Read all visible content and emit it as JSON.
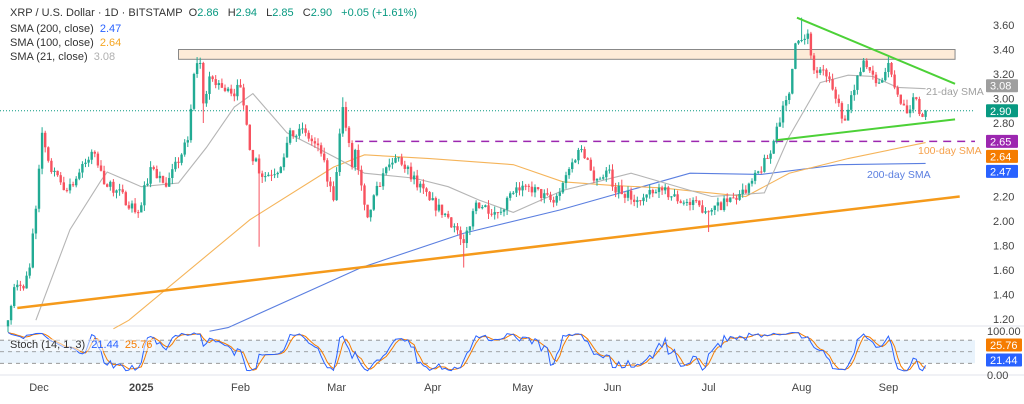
{
  "header": {
    "symbol": "XRP / U.S. Dollar · 1D · BITSTAMP",
    "open_label": "O",
    "open": "2.86",
    "high_label": "H",
    "high": "2.94",
    "low_label": "L",
    "low": "2.85",
    "close_label": "C",
    "close": "2.90",
    "change": "+0.05 (+1.61%)"
  },
  "indicators": [
    {
      "label": "SMA (200, close)",
      "value": "2.47",
      "color": "#2962ff"
    },
    {
      "label": "SMA (100, close)",
      "value": "2.64",
      "color": "#f5a623"
    },
    {
      "label": "SMA (21, close)",
      "value": "3.08",
      "color": "#b0b0b0"
    }
  ],
  "stoch": {
    "label": "Stoch (14, 1, 3)",
    "k": "21.44",
    "d": "25.76",
    "k_color": "#2962ff",
    "d_color": "#f57c00"
  },
  "colors": {
    "up": "#22ab94",
    "down": "#f7525f",
    "sma200": "#5b7fe0",
    "sma100": "#f5b45a",
    "sma21": "#b5b5b5",
    "trend": "#f59a1b",
    "triangle": "#4cd137",
    "level": "#9c27b0",
    "zone_fill": "#fdebd8",
    "zone_border": "#888888"
  },
  "chart_data": {
    "type": "candlestick",
    "title": "XRP / U.S. Dollar · 1D · BITSTAMP",
    "ylim": [
      1.1,
      3.7
    ],
    "y_ticks": [
      "3.60",
      "3.40",
      "3.20",
      "3.00",
      "2.80",
      "2.20",
      "2.00",
      "1.80",
      "1.60",
      "1.40",
      "1.20"
    ],
    "x_ticks": [
      {
        "label": "Dec",
        "day": 10,
        "bold": false
      },
      {
        "label": "2025",
        "day": 43,
        "bold": true
      },
      {
        "label": "Feb",
        "day": 75,
        "bold": false
      },
      {
        "label": "Mar",
        "day": 106,
        "bold": false
      },
      {
        "label": "Apr",
        "day": 137,
        "bold": false
      },
      {
        "label": "May",
        "day": 166,
        "bold": false
      },
      {
        "label": "Jun",
        "day": 195,
        "bold": false
      },
      {
        "label": "Jul",
        "day": 226,
        "bold": false
      },
      {
        "label": "Aug",
        "day": 256,
        "bold": false
      },
      {
        "label": "Sep",
        "day": 284,
        "bold": false
      }
    ],
    "close_keypoints": [
      [
        0,
        1.19
      ],
      [
        2,
        1.46
      ],
      [
        5,
        1.45
      ],
      [
        7,
        1.62
      ],
      [
        9,
        2.1
      ],
      [
        11,
        2.72
      ],
      [
        14,
        2.4
      ],
      [
        19,
        2.25
      ],
      [
        26,
        2.5
      ],
      [
        28,
        2.55
      ],
      [
        31,
        2.3
      ],
      [
        35,
        2.25
      ],
      [
        42,
        2.07
      ],
      [
        46,
        2.44
      ],
      [
        51,
        2.28
      ],
      [
        58,
        2.66
      ],
      [
        60,
        3.2
      ],
      [
        62,
        3.29
      ],
      [
        63,
        2.96
      ],
      [
        65,
        3.18
      ],
      [
        72,
        3.04
      ],
      [
        75,
        3.09
      ],
      [
        78,
        2.58
      ],
      [
        82,
        2.36
      ],
      [
        88,
        2.44
      ],
      [
        91,
        2.74
      ],
      [
        96,
        2.72
      ],
      [
        101,
        2.55
      ],
      [
        105,
        2.17
      ],
      [
        108,
        2.93
      ],
      [
        111,
        2.44
      ],
      [
        112,
        2.58
      ],
      [
        116,
        2.03
      ],
      [
        121,
        2.39
      ],
      [
        126,
        2.52
      ],
      [
        136,
        2.17
      ],
      [
        142,
        2.03
      ],
      [
        147,
        1.82
      ],
      [
        151,
        2.15
      ],
      [
        158,
        2.07
      ],
      [
        163,
        2.23
      ],
      [
        168,
        2.28
      ],
      [
        176,
        2.15
      ],
      [
        179,
        2.31
      ],
      [
        184,
        2.58
      ],
      [
        187,
        2.5
      ],
      [
        189,
        2.33
      ],
      [
        194,
        2.42
      ],
      [
        195,
        2.28
      ],
      [
        203,
        2.17
      ],
      [
        211,
        2.25
      ],
      [
        218,
        2.15
      ],
      [
        227,
        2.09
      ],
      [
        238,
        2.23
      ],
      [
        246,
        2.55
      ],
      [
        248,
        2.77
      ],
      [
        252,
        3.04
      ],
      [
        254,
        3.45
      ],
      [
        258,
        3.53
      ],
      [
        260,
        3.23
      ],
      [
        264,
        3.18
      ],
      [
        270,
        2.82
      ],
      [
        273,
        3.07
      ],
      [
        276,
        3.31
      ],
      [
        281,
        3.13
      ],
      [
        284,
        3.29
      ],
      [
        286,
        3.09
      ],
      [
        290,
        2.88
      ],
      [
        292,
        3.01
      ],
      [
        295,
        2.85
      ],
      [
        296,
        2.9
      ]
    ],
    "wick_overrides": [
      [
        63,
        null,
        2.8
      ],
      [
        81,
        null,
        1.79
      ],
      [
        108,
        3.01,
        null
      ],
      [
        147,
        null,
        1.62
      ],
      [
        226,
        null,
        1.91
      ],
      [
        256,
        3.66,
        null
      ]
    ],
    "series": [
      {
        "name": "SMA 200",
        "points": [
          [
            65,
            1.1
          ],
          [
            71,
            1.13
          ],
          [
            114,
            1.62
          ],
          [
            147,
            1.9
          ],
          [
            178,
            2.09
          ],
          [
            220,
            2.39
          ],
          [
            243,
            2.38
          ],
          [
            268,
            2.46
          ],
          [
            296,
            2.47
          ]
        ]
      },
      {
        "name": "SMA 100",
        "points": [
          [
            34,
            1.12
          ],
          [
            39,
            1.19
          ],
          [
            78,
            2.01
          ],
          [
            105,
            2.44
          ],
          [
            115,
            2.54
          ],
          [
            136,
            2.51
          ],
          [
            163,
            2.46
          ],
          [
            179,
            2.32
          ],
          [
            195,
            2.29
          ],
          [
            211,
            2.27
          ],
          [
            238,
            2.2
          ],
          [
            252,
            2.39
          ],
          [
            271,
            2.51
          ],
          [
            296,
            2.64
          ]
        ]
      },
      {
        "name": "SMA 21",
        "points": [
          [
            9,
            1.19
          ],
          [
            20,
            1.93
          ],
          [
            30,
            2.33
          ],
          [
            32,
            2.4
          ],
          [
            43,
            2.28
          ],
          [
            55,
            2.31
          ],
          [
            64,
            2.6
          ],
          [
            73,
            2.93
          ],
          [
            79,
            3.04
          ],
          [
            90,
            2.72
          ],
          [
            101,
            2.58
          ],
          [
            107,
            2.5
          ],
          [
            115,
            2.39
          ],
          [
            131,
            2.35
          ],
          [
            142,
            2.28
          ],
          [
            152,
            2.17
          ],
          [
            163,
            2.07
          ],
          [
            179,
            2.25
          ],
          [
            190,
            2.32
          ],
          [
            201,
            2.39
          ],
          [
            220,
            2.25
          ],
          [
            227,
            2.2
          ],
          [
            244,
            2.23
          ],
          [
            252,
            2.69
          ],
          [
            262,
            3.13
          ],
          [
            271,
            3.19
          ],
          [
            279,
            3.18
          ],
          [
            287,
            3.09
          ],
          [
            296,
            3.08
          ]
        ]
      }
    ],
    "trendlines": {
      "support": [
        [
          3,
          1.29
        ],
        [
          307,
          2.2
        ]
      ],
      "triangle_upper": [
        [
          254.5,
          3.66
        ],
        [
          305.5,
          3.12
        ]
      ],
      "triangle_lower": [
        [
          248,
          2.66
        ],
        [
          305.5,
          2.83
        ]
      ],
      "horizontal_level": {
        "from_day": 112,
        "price": 2.65
      },
      "resistance_zone": {
        "from_day": 55,
        "to_day": 305.5,
        "low": 3.32,
        "high": 3.4
      },
      "current_price": 2.9
    },
    "annotations": [
      {
        "text": "21-day SMA",
        "color": "#a0a0a0"
      },
      {
        "text": "100-day SMA",
        "color": "#f5a04a"
      },
      {
        "text": "200-day SMA",
        "color": "#5b7fe0"
      }
    ],
    "price_badges": [
      {
        "value": "3.08",
        "color": "#9e9e9e"
      },
      {
        "value": "2.90",
        "color": "#089981"
      },
      {
        "value": "2.65",
        "color": "#9c27b0"
      },
      {
        "value": "2.64",
        "color": "#f57c00"
      },
      {
        "value": "2.47",
        "color": "#2962ff"
      }
    ],
    "stoch_ticks": [
      "100.00",
      "0.00"
    ],
    "stoch_badges": [
      {
        "value": "25.76",
        "color": "#f57c00"
      },
      {
        "value": "21.44",
        "color": "#2962ff"
      }
    ]
  }
}
